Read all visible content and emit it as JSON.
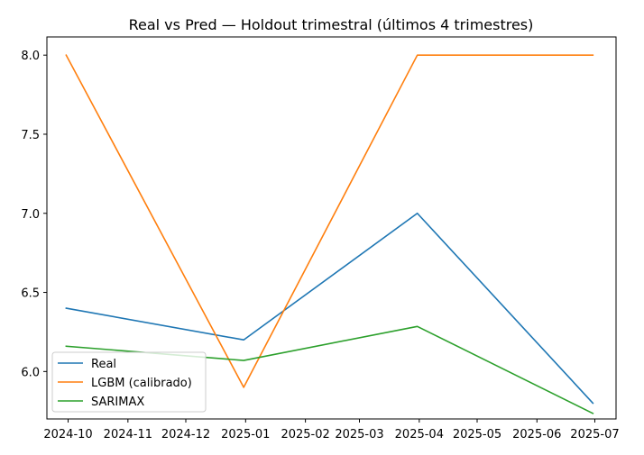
{
  "chart_data": {
    "type": "line",
    "title": "Real vs Pred — Holdout trimestral (últimos 4 trimestres)",
    "xlabel": "",
    "ylabel": "",
    "x": [
      "2024-09-30",
      "2024-12-31",
      "2025-03-31",
      "2025-06-30"
    ],
    "xlim": [
      "2024-09-20",
      "2025-07-12"
    ],
    "x_ticks": [
      "2024-10-01",
      "2024-11-01",
      "2024-12-01",
      "2025-01-01",
      "2025-02-01",
      "2025-03-01",
      "2025-04-01",
      "2025-05-01",
      "2025-06-01",
      "2025-07-01"
    ],
    "x_tick_labels": [
      "2024-10",
      "2024-11",
      "2024-12",
      "2025-01",
      "2025-02",
      "2025-03",
      "2025-04",
      "2025-05",
      "2025-06",
      "2025-07"
    ],
    "ylim": [
      5.7,
      8.115
    ],
    "y_ticks": [
      6.0,
      6.5,
      7.0,
      7.5,
      8.0
    ],
    "y_tick_labels": [
      "6.0",
      "6.5",
      "7.0",
      "7.5",
      "8.0"
    ],
    "grid": false,
    "legend_position": "lower-left",
    "series": [
      {
        "name": "Real",
        "color": "#1f77b4",
        "values": [
          6.4,
          6.2,
          7.0,
          5.8
        ]
      },
      {
        "name": "LGBM (calibrado)",
        "color": "#ff7f0e",
        "values": [
          8.0,
          5.9,
          8.0,
          8.0
        ]
      },
      {
        "name": "SARIMAX",
        "color": "#2ca02c",
        "values": [
          6.16,
          6.07,
          6.285,
          5.735
        ]
      }
    ]
  }
}
